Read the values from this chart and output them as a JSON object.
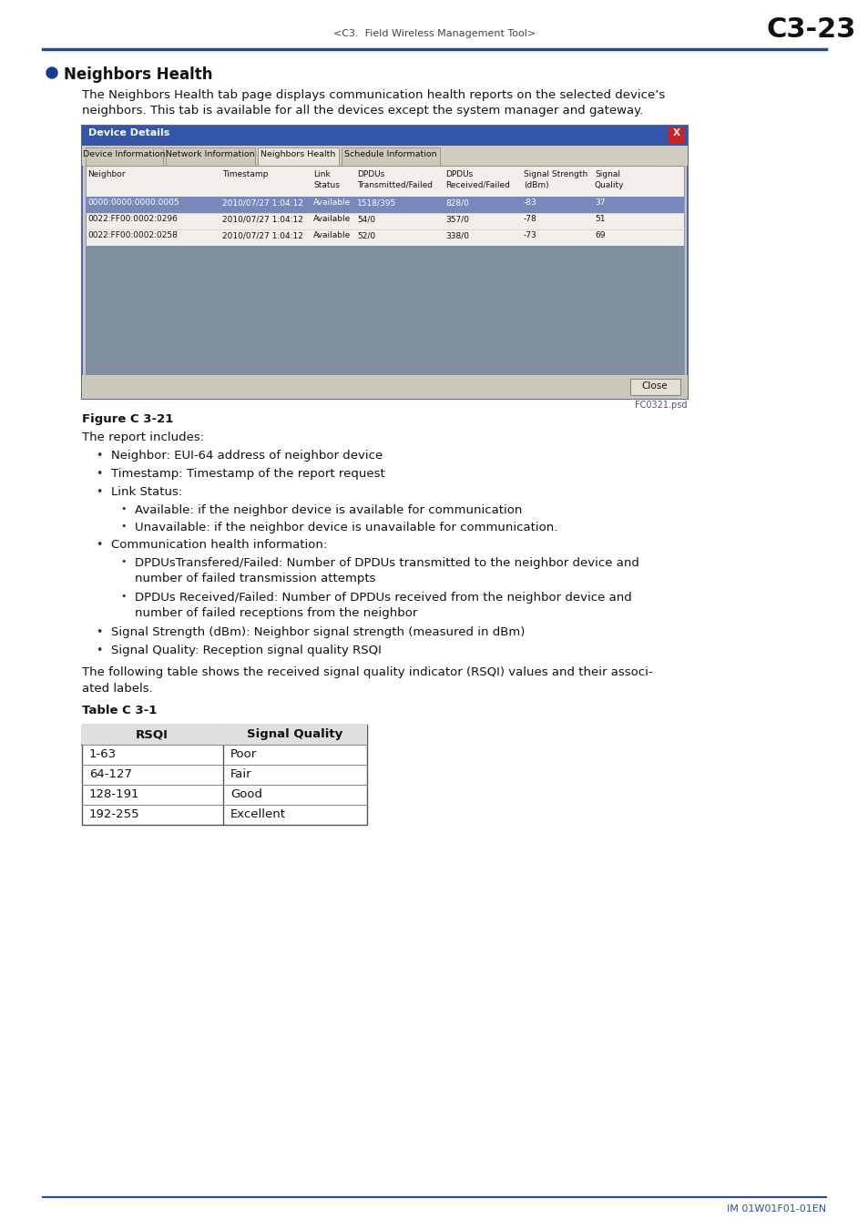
{
  "page_header_left": "<C3.  Field Wireless Management Tool>",
  "page_header_right": "C3-23",
  "header_line_color": "#1e4d9b",
  "section_bullet_color": "#1a3a8c",
  "section_title": "Neighbors Health",
  "intro_line1": "The Neighbors Health tab page displays communication health reports on the selected device’s",
  "intro_line2": "neighbors. This tab is available for all the devices except the system manager and gateway.",
  "figure_caption": "Figure C 3-21",
  "figure_note": "FC0321.psd",
  "dialog_title": "Device Details",
  "tabs": [
    "Device Information",
    "Network Information",
    "Neighbors Health",
    "Schedule Information"
  ],
  "active_tab": "Neighbors Health",
  "table_header_cols": [
    "Neighbor",
    "Timestamp",
    "Link\nStatus",
    "DPDUs\nTransmitted/Failed",
    "DPDUs\nReceived/Failed",
    "Signal Strength\n(dBm)",
    "Signal\nQuality"
  ],
  "table_rows": [
    [
      "0000:0000:0000:0005",
      "2010/07/27 1:04:12",
      "Available",
      "1518/395",
      "828/0",
      "-83",
      "37"
    ],
    [
      "0022:FF00:0002:0296",
      "2010/07/27 1:04:12",
      "Available",
      "54/0",
      "357/0",
      "-78",
      "51"
    ],
    [
      "0022:FF00:0002:0258",
      "2010/07/27 1:04:12",
      "Available",
      "52/0",
      "338/0",
      "-73",
      "69"
    ]
  ],
  "row0_highlight_bg": "#7788bb",
  "table_empty_bg": "#7f8f9f",
  "close_btn_text": "Close",
  "report_includes_text": "The report includes:",
  "l1_item0": "Neighbor: EUI-64 address of neighbor device",
  "l1_item1": "Timestamp: Timestamp of the report request",
  "l1_item2": "Link Status:",
  "l1_item2_sub0": "Available: if the neighbor device is available for communication",
  "l1_item2_sub1": "Unavailable: if the neighbor device is unavailable for communication.",
  "l1_item3": "Communication health information:",
  "l1_item3_sub0_line1": "DPDUsTransfered/Failed: Number of DPDUs transmitted to the neighbor device and",
  "l1_item3_sub0_line2": "number of failed transmission attempts",
  "l1_item3_sub1_line1": "DPDUs Received/Failed: Number of DPDUs received from the neighbor device and",
  "l1_item3_sub1_line2": "number of failed receptions from the neighbor",
  "l1_item4": "Signal Strength (dBm): Neighbor signal strength (measured in dBm)",
  "l1_item5": "Signal Quality: Reception signal quality RSQI",
  "table_note_line1": "The following table shows the received signal quality indicator (RSQI) values and their associ-",
  "table_note_line2": "ated labels.",
  "table_c31_label": "Table C 3-1",
  "rsqi_table_headers": [
    "RSQI",
    "Signal Quality"
  ],
  "rsqi_table_rows": [
    [
      "1-63",
      "Poor"
    ],
    [
      "64-127",
      "Fair"
    ],
    [
      "128-191",
      "Good"
    ],
    [
      "192-255",
      "Excellent"
    ]
  ],
  "footer_text": "IM 01W01F01-01EN",
  "footer_color": "#2255aa",
  "bg_color": "#ffffff",
  "text_color": "#111111"
}
